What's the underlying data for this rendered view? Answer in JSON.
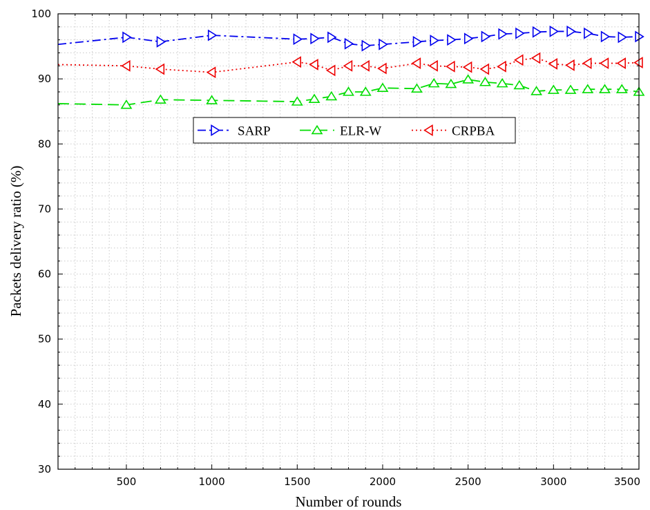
{
  "chart_data": {
    "type": "line",
    "title": "",
    "xlabel": "Number of rounds",
    "ylabel": "Packets delivery ratio (%)",
    "xlim": [
      100,
      3500
    ],
    "ylim": [
      30,
      100
    ],
    "xticks": [
      500,
      1000,
      1500,
      2000,
      2500,
      3000,
      3500
    ],
    "yticks": [
      30,
      40,
      50,
      60,
      70,
      80,
      90,
      100
    ],
    "grid": true,
    "legend_position": "upper-center",
    "series": [
      {
        "name": "SARP",
        "color": "#0000ee",
        "line_style": "dash-dot",
        "marker": "triangle-right",
        "x": [
          100,
          500,
          700,
          1000,
          1500,
          1600,
          1700,
          1800,
          1900,
          2000,
          2200,
          2300,
          2400,
          2500,
          2600,
          2700,
          2800,
          2900,
          3000,
          3100,
          3200,
          3300,
          3400,
          3500
        ],
        "y": [
          95.3,
          96.4,
          95.7,
          96.7,
          96.1,
          96.2,
          96.4,
          95.4,
          95.1,
          95.3,
          95.7,
          95.9,
          96.0,
          96.2,
          96.5,
          96.9,
          97.0,
          97.2,
          97.3,
          97.3,
          97.0,
          96.5,
          96.4,
          96.5
        ]
      },
      {
        "name": "ELR-W",
        "color": "#00dd00",
        "line_style": "dashed",
        "marker": "triangle-up",
        "x": [
          100,
          500,
          700,
          1000,
          1500,
          1600,
          1700,
          1800,
          1900,
          2000,
          2200,
          2300,
          2400,
          2500,
          2600,
          2700,
          2800,
          2900,
          3000,
          3100,
          3200,
          3300,
          3400,
          3500
        ],
        "y": [
          86.2,
          86.0,
          86.8,
          86.7,
          86.5,
          86.9,
          87.3,
          88.0,
          88.0,
          88.6,
          88.5,
          89.3,
          89.2,
          89.9,
          89.5,
          89.3,
          89.0,
          88.1,
          88.3,
          88.3,
          88.4,
          88.4,
          88.4,
          88.0
        ]
      },
      {
        "name": "CRPBA",
        "color": "#ee0000",
        "line_style": "dotted",
        "marker": "triangle-left",
        "x": [
          100,
          500,
          700,
          1000,
          1500,
          1600,
          1700,
          1800,
          1900,
          2000,
          2200,
          2300,
          2400,
          2500,
          2600,
          2700,
          2800,
          2900,
          3000,
          3100,
          3200,
          3300,
          3400,
          3500
        ],
        "y": [
          92.2,
          92.0,
          91.5,
          91.0,
          92.6,
          92.2,
          91.3,
          92.0,
          92.0,
          91.6,
          92.4,
          92.0,
          91.9,
          91.8,
          91.5,
          91.9,
          92.9,
          93.2,
          92.3,
          92.1,
          92.4,
          92.4,
          92.4,
          92.5
        ]
      }
    ]
  }
}
